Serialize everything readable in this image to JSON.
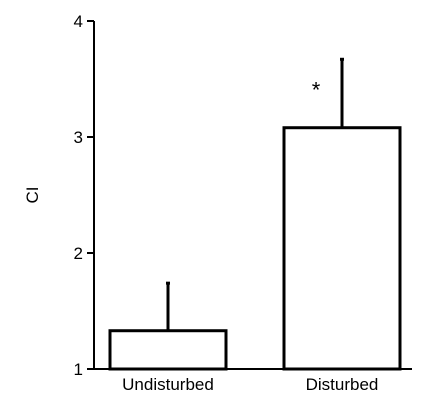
{
  "chart_data": {
    "type": "bar",
    "categories": [
      "Undisturbed",
      "Disturbed"
    ],
    "values": [
      1.33,
      3.08
    ],
    "error_upper": [
      1.74,
      3.67
    ],
    "annotations": [
      "",
      "*"
    ],
    "ylabel": "CI",
    "xlabel": "",
    "title": "",
    "ylim": [
      1,
      4
    ],
    "yticks": [
      "1",
      "2",
      "3",
      "4"
    ],
    "grid": false,
    "legend": "none",
    "colors": {
      "bar_fill": "#ffffff",
      "stroke": "#000000"
    }
  }
}
